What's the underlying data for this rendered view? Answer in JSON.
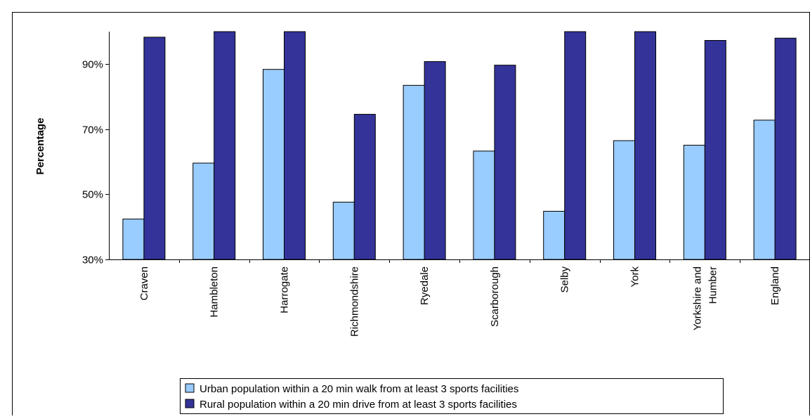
{
  "chart_data": {
    "type": "bar",
    "title": "",
    "xlabel": "",
    "ylabel": "Percentage",
    "ylim": [
      30,
      100
    ],
    "yticks": [
      "30%",
      "50%",
      "70%",
      "90%"
    ],
    "ytick_values": [
      30,
      50,
      70,
      90
    ],
    "grid": false,
    "legend_position": "bottom",
    "categories": [
      [
        "Craven"
      ],
      [
        "Hambleton"
      ],
      [
        "Harrogate"
      ],
      [
        "Richmondshire"
      ],
      [
        "Ryedale"
      ],
      [
        "Scarborough"
      ],
      [
        "Selby"
      ],
      [
        "York"
      ],
      [
        "Yorkshire and",
        "Humber"
      ],
      [
        "England"
      ]
    ],
    "series": [
      {
        "name": "Urban population within a 20 min walk from at least 3 sports facilities",
        "color": "#99ccff",
        "values": [
          42.4,
          59.6,
          88.4,
          47.6,
          83.5,
          63.3,
          44.8,
          66.5,
          65.1,
          72.8
        ]
      },
      {
        "name": "Rural population within a 20 min drive from at least 3 sports facilities",
        "color": "#333399",
        "values": [
          98.3,
          100,
          100,
          74.6,
          90.8,
          89.7,
          100,
          100,
          97.3,
          98.0
        ]
      }
    ]
  }
}
